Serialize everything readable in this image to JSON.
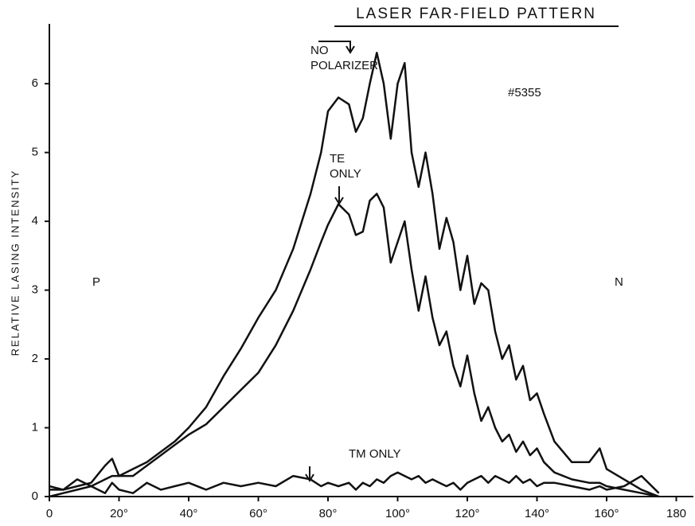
{
  "chart_data": {
    "type": "line",
    "title": "LASER FAR-FIELD PATTERN",
    "y_label": "RELATIVE LASING INTENSITY",
    "annotations": [
      "#5355",
      "P",
      "N"
    ],
    "x": [
      0,
      4,
      8,
      12,
      16,
      18,
      20,
      24,
      28,
      32,
      36,
      40,
      45,
      50,
      55,
      60,
      65,
      70,
      75,
      78,
      80,
      83,
      86,
      88,
      90,
      92,
      94,
      96,
      98,
      100,
      102,
      104,
      106,
      108,
      110,
      112,
      114,
      116,
      118,
      120,
      122,
      124,
      126,
      128,
      130,
      132,
      134,
      136,
      138,
      140,
      142,
      145,
      150,
      155,
      158,
      160,
      165,
      170,
      175
    ],
    "series": [
      {
        "name": "NO POLARIZER",
        "color": "#111111",
        "values": [
          0,
          0.05,
          0.1,
          0.15,
          0.25,
          0.3,
          0.3,
          0.4,
          0.5,
          0.65,
          0.8,
          1.0,
          1.3,
          1.75,
          2.15,
          2.6,
          3.0,
          3.6,
          4.4,
          5.0,
          5.6,
          5.8,
          5.7,
          5.3,
          5.5,
          6.0,
          6.45,
          6.0,
          5.2,
          6.0,
          6.3,
          5.0,
          4.5,
          5.0,
          4.4,
          3.6,
          4.05,
          3.7,
          3.0,
          3.5,
          2.8,
          3.1,
          3.0,
          2.4,
          2.0,
          2.2,
          1.7,
          1.9,
          1.4,
          1.5,
          1.2,
          0.8,
          0.5,
          0.5,
          0.7,
          0.4,
          0.25,
          0.1,
          0
        ]
      },
      {
        "name": "TE ONLY",
        "color": "#111111",
        "values": [
          0.1,
          0.1,
          0.15,
          0.2,
          0.45,
          0.55,
          0.3,
          0.3,
          0.45,
          0.6,
          0.75,
          0.9,
          1.05,
          1.3,
          1.55,
          1.8,
          2.2,
          2.7,
          3.3,
          3.7,
          3.95,
          4.25,
          4.1,
          3.8,
          3.85,
          4.3,
          4.4,
          4.2,
          3.4,
          3.7,
          4.0,
          3.3,
          2.7,
          3.2,
          2.6,
          2.2,
          2.4,
          1.9,
          1.6,
          2.05,
          1.5,
          1.1,
          1.3,
          1.0,
          0.8,
          0.9,
          0.65,
          0.8,
          0.6,
          0.7,
          0.5,
          0.35,
          0.25,
          0.2,
          0.2,
          0.15,
          0.1,
          0.05,
          0
        ]
      },
      {
        "name": "TM ONLY",
        "color": "#111111",
        "values": [
          0.15,
          0.1,
          0.25,
          0.15,
          0.05,
          0.2,
          0.1,
          0.05,
          0.2,
          0.1,
          0.15,
          0.2,
          0.1,
          0.2,
          0.15,
          0.2,
          0.15,
          0.3,
          0.25,
          0.15,
          0.2,
          0.15,
          0.2,
          0.1,
          0.2,
          0.15,
          0.25,
          0.2,
          0.3,
          0.35,
          0.3,
          0.25,
          0.3,
          0.2,
          0.25,
          0.2,
          0.15,
          0.2,
          0.1,
          0.2,
          0.25,
          0.3,
          0.2,
          0.3,
          0.25,
          0.2,
          0.3,
          0.2,
          0.25,
          0.15,
          0.2,
          0.2,
          0.15,
          0.1,
          0.15,
          0.1,
          0.15,
          0.3,
          0.05
        ]
      }
    ],
    "xlim": [
      0,
      184
    ],
    "ylim": [
      0,
      6.8
    ],
    "xticks": [
      0,
      {
        "value": 20,
        "label": "20°"
      },
      {
        "value": 40,
        "label": "40°"
      },
      {
        "value": 60,
        "label": "60°"
      },
      {
        "value": 80,
        "label": "80°"
      },
      {
        "value": 100,
        "label": "100°"
      },
      {
        "value": 120,
        "label": "120°"
      },
      {
        "value": 140,
        "label": "140°"
      },
      {
        "value": 160,
        "label": "160°"
      },
      180
    ],
    "yticks": [
      0,
      1,
      2,
      3,
      4,
      5,
      6
    ]
  }
}
